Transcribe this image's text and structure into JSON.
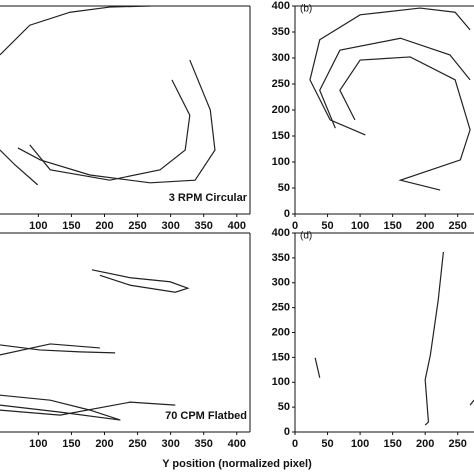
{
  "chart_data": [
    {
      "type": "line",
      "annotation": "3 RPM Circular",
      "xlim": [
        42,
        420
      ],
      "ylim": [
        0,
        400
      ],
      "xticks": [
        100,
        150,
        200,
        250,
        300,
        350,
        400
      ],
      "series": [
        {
          "color": "#222",
          "x": [
            42,
            87,
            148,
            208,
            269
          ],
          "values": [
            306,
            363,
            388,
            398,
            400
          ]
        },
        {
          "color": "#222",
          "x": [
            329,
            360,
            367,
            337,
            269,
            178,
            103,
            69
          ],
          "values": [
            296,
            200,
            123,
            65,
            60,
            75,
            104,
            127
          ]
        },
        {
          "color": "#222",
          "x": [
            302,
            329,
            322,
            284,
            208,
            118,
            87
          ],
          "values": [
            258,
            190,
            123,
            85,
            65,
            85,
            133
          ]
        },
        {
          "color": "#222",
          "x": [
            42,
            65,
            99
          ],
          "values": [
            123,
            94,
            56
          ]
        }
      ]
    },
    {
      "type": "line",
      "panel_label": "(b)",
      "xlim": [
        0,
        275
      ],
      "ylim": [
        0,
        400
      ],
      "xticks": [
        0,
        50,
        100,
        150,
        200,
        250
      ],
      "yticks": [
        0,
        50,
        100,
        150,
        200,
        250,
        300,
        350,
        400
      ],
      "series": [
        {
          "color": "#222",
          "x": [
            108,
            54,
            23,
            38,
            100,
            192,
            246,
            269
          ],
          "values": [
            152,
            181,
            258,
            335,
            383,
            396,
            388,
            354
          ]
        },
        {
          "color": "#222",
          "x": [
            62,
            38,
            69,
            162,
            238,
            269
          ],
          "values": [
            165,
            238,
            315,
            338,
            306,
            258
          ]
        },
        {
          "color": "#222",
          "x": [
            92,
            69,
            100,
            177,
            246,
            269,
            254,
            162,
            223
          ],
          "values": [
            181,
            238,
            296,
            302,
            258,
            162,
            104,
            65,
            46
          ]
        }
      ]
    },
    {
      "type": "line",
      "annotation": "70 CPM Flatbed",
      "xlim": [
        42,
        420
      ],
      "ylim": [
        0,
        400
      ],
      "xticks": [
        100,
        150,
        200,
        250,
        300,
        350,
        400
      ],
      "series": [
        {
          "color": "#222",
          "x": [
            181,
            239,
            299,
            326,
            307,
            239,
            193
          ],
          "values": [
            326,
            310,
            302,
            289,
            281,
            295,
            315
          ]
        },
        {
          "color": "#222",
          "x": [
            42,
            102,
            163,
            216
          ],
          "values": [
            175,
            165,
            161,
            159
          ]
        },
        {
          "color": "#222",
          "x": [
            42,
            118,
            193
          ],
          "values": [
            155,
            177,
            169
          ]
        },
        {
          "color": "#222",
          "x": [
            42,
            118,
            178,
            224,
            133,
            42
          ],
          "values": [
            74,
            64,
            44,
            24,
            40,
            54
          ]
        },
        {
          "color": "#222",
          "x": [
            42,
            133,
            239,
            307
          ],
          "values": [
            44,
            34,
            60,
            54
          ]
        }
      ]
    },
    {
      "type": "line",
      "panel_label": "(d)",
      "xlabel": "Y position (normalized pixel)",
      "xlim": [
        0,
        275
      ],
      "ylim": [
        0,
        400
      ],
      "xticks": [
        0,
        50,
        100,
        150,
        200,
        250
      ],
      "yticks": [
        0,
        50,
        100,
        150,
        200,
        250,
        300,
        350,
        400
      ],
      "series": [
        {
          "color": "#222",
          "x": [
            31,
            38
          ],
          "values": [
            149,
            109
          ]
        },
        {
          "color": "#222",
          "x": [
            228,
            220,
            208,
            200,
            205,
            200
          ],
          "values": [
            362,
            265,
            155,
            105,
            20,
            14
          ]
        },
        {
          "color": "#222",
          "x": [
            269,
            275
          ],
          "values": [
            54,
            64
          ]
        }
      ]
    }
  ]
}
